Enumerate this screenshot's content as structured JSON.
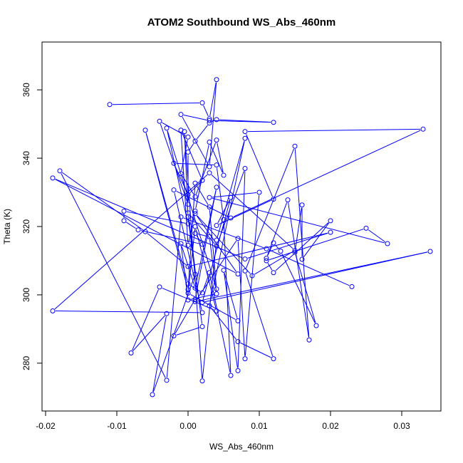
{
  "chart_data": {
    "type": "line",
    "title": "ATOM2 Southbound WS_Abs_460nm",
    "xlabel": "WS_Abs_460nm",
    "ylabel": "Theta (K)",
    "xlim": [
      -0.0205,
      0.0355
    ],
    "ylim": [
      266,
      374
    ],
    "xticks": [
      -0.02,
      -0.01,
      0.0,
      0.01,
      0.02,
      0.03
    ],
    "xtick_labels": [
      "-0.02",
      "-0.01",
      "0.00",
      "0.01",
      "0.02",
      "0.03"
    ],
    "yticks": [
      280,
      300,
      320,
      340,
      360
    ],
    "ytick_labels": [
      "280",
      "300",
      "320",
      "340",
      "360"
    ],
    "grid": false,
    "series_color": "#0000ff",
    "series": [
      {
        "x": [
          -0.011,
          0.002,
          0.003,
          0.004,
          0.003,
          -0.001,
          0.003,
          0.012,
          0.004,
          0.003,
          0.001,
          0.0,
          0.0,
          -0.004,
          0.0,
          -0.001,
          0.001,
          0.004,
          0.005,
          0.003,
          0.001,
          0.0,
          -0.001,
          0.002,
          0.0,
          -0.002,
          0.004,
          0.005,
          0.006,
          0.003,
          0.002,
          0.0,
          -0.006,
          0.0,
          0.001,
          0.003,
          0.004,
          -0.003,
          0.0,
          -0.009,
          -0.009,
          -0.007,
          0.002,
          0.001,
          0.003,
          0.004,
          0.0,
          -0.001,
          0.001,
          0.004,
          0.001,
          -0.002,
          0.002,
          0.0,
          0.004,
          0.008,
          0.007,
          0.005,
          0.007,
          0.0,
          0.001,
          0.004,
          -0.004,
          -0.008,
          -0.003,
          -0.005,
          0.001,
          0.0,
          -0.0005,
          0.002,
          0.004,
          0.008,
          0.003,
          0.007,
          0.012,
          0.008,
          0.015,
          0.017,
          0.014,
          0.011,
          0.012,
          0.013,
          0.018,
          0.015,
          0.016,
          0.016,
          0.02,
          0.012,
          0.011,
          0.025,
          0.028,
          0.003,
          0.01,
          0.008,
          0.007,
          0.001,
          0.034,
          0.002,
          0.006,
          0.004,
          0.012,
          0.008,
          0.033,
          0.006,
          -0.002,
          0.002,
          -0.019,
          0.003,
          0.015,
          0.009,
          0.001,
          0.007,
          -0.019,
          0.008,
          0.02,
          0.0,
          -0.006,
          -0.018,
          -0.003,
          -0.001,
          0.011,
          0.023
        ],
        "y": [
          355.7,
          356.2,
          351.5,
          363.0,
          337.5,
          352.8,
          351.0,
          350.5,
          351.3,
          350.3,
          345.0,
          341.8,
          326.5,
          350.8,
          346.2,
          335.5,
          328.7,
          345.3,
          335.0,
          344.7,
          324.5,
          314.5,
          348.2,
          333.5,
          329.3,
          338.5,
          338.0,
          322.0,
          276.4,
          306.5,
          300.6,
          303.2,
          348.2,
          301.5,
          332.7,
          325.7,
          301.7,
          348.8,
          320.8,
          324.5,
          321.7,
          319.0,
          314.8,
          318.0,
          317.0,
          300.3,
          298.5,
          315.0,
          302.0,
          331.5,
          298.7,
          288.0,
          290.7,
          324.0,
          314.3,
          337.0,
          277.8,
          307.2,
          292.4,
          300.5,
          320.0,
          295.3,
          302.3,
          283.0,
          294.5,
          270.8,
          306.0,
          322.8,
          347.8,
          274.8,
          316.0,
          345.8,
          296.8,
          286.3,
          281.3,
          307.0,
          343.5,
          286.8,
          327.8,
          310.7,
          315.2,
          312.8,
          291.0,
          312.5,
          326.3,
          310.4,
          321.7,
          306.5,
          310.0,
          319.5,
          315.0,
          328.5,
          330.0,
          281.3,
          316.5,
          298.0,
          312.7,
          297.8,
          328.5,
          320.3,
          328.0,
          347.8,
          348.5,
          322.5,
          330.7,
          294.8,
          295.3,
          335.7,
          313.0,
          305.6,
          323.8,
          306.1,
          334.2,
          310.5,
          318.3,
          308.3,
          318.5,
          336.3,
          275.0,
          322.8,
          313.5,
          302.4
        ]
      }
    ]
  }
}
